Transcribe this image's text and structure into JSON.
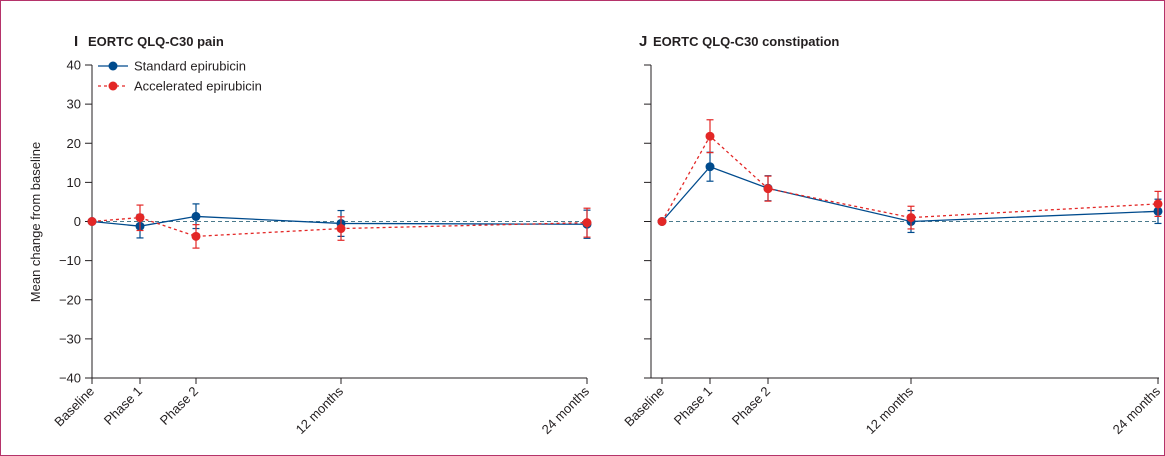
{
  "colors": {
    "standard": "#004b8d",
    "accelerated": "#e32726",
    "axis": "#231f20",
    "reference": "#4a7a8c"
  },
  "ylabel": "Mean change from baseline",
  "legend": {
    "standard": "Standard epirubicin",
    "accelerated": "Accelerated epirubicin"
  },
  "chart_data": [
    {
      "type": "line",
      "letter": "I",
      "title": "EORTC QLQ-C30 pain",
      "x_labels": [
        "Baseline",
        "Phase 1",
        "Phase 2",
        "12 months",
        "24 months"
      ],
      "ylim": [
        -40,
        40
      ],
      "yticks": [
        -40,
        -30,
        -20,
        -10,
        0,
        10,
        20,
        30,
        40
      ],
      "reference_line": 0,
      "legend_position": "top-left",
      "series": [
        {
          "name": "Standard epirubicin",
          "values": [
            0,
            -1.2,
            1.3,
            -0.5,
            -0.7
          ],
          "lower": [
            0,
            -4.2,
            -1.8,
            -3.8,
            -4.3
          ],
          "upper": [
            0,
            1.8,
            4.5,
            2.8,
            2.9
          ]
        },
        {
          "name": "Accelerated epirubicin",
          "values": [
            0,
            1.0,
            -3.8,
            -1.8,
            -0.3
          ],
          "lower": [
            0,
            -2.3,
            -6.8,
            -4.8,
            -4.0
          ],
          "upper": [
            0,
            4.2,
            -0.8,
            1.2,
            3.4
          ]
        }
      ]
    },
    {
      "type": "line",
      "letter": "J",
      "title": "EORTC QLQ-C30 constipation",
      "x_labels": [
        "Baseline",
        "Phase 1",
        "Phase 2",
        "12 months",
        "24 months"
      ],
      "ylim": [
        -40,
        40
      ],
      "yticks": [
        -40,
        -30,
        -20,
        -10,
        0,
        10,
        20,
        30,
        40
      ],
      "reference_line": 0,
      "series": [
        {
          "name": "Standard epirubicin",
          "values": [
            0,
            14.0,
            8.5,
            0.0,
            2.6
          ],
          "lower": [
            0,
            10.3,
            5.3,
            -2.8,
            -0.5
          ],
          "upper": [
            0,
            17.7,
            11.7,
            2.8,
            5.7
          ]
        },
        {
          "name": "Accelerated epirubicin",
          "values": [
            0,
            21.8,
            8.4,
            1.0,
            4.5
          ],
          "lower": [
            0,
            17.6,
            5.2,
            -1.9,
            1.3
          ],
          "upper": [
            0,
            26.0,
            11.6,
            3.9,
            7.7
          ]
        }
      ]
    }
  ]
}
